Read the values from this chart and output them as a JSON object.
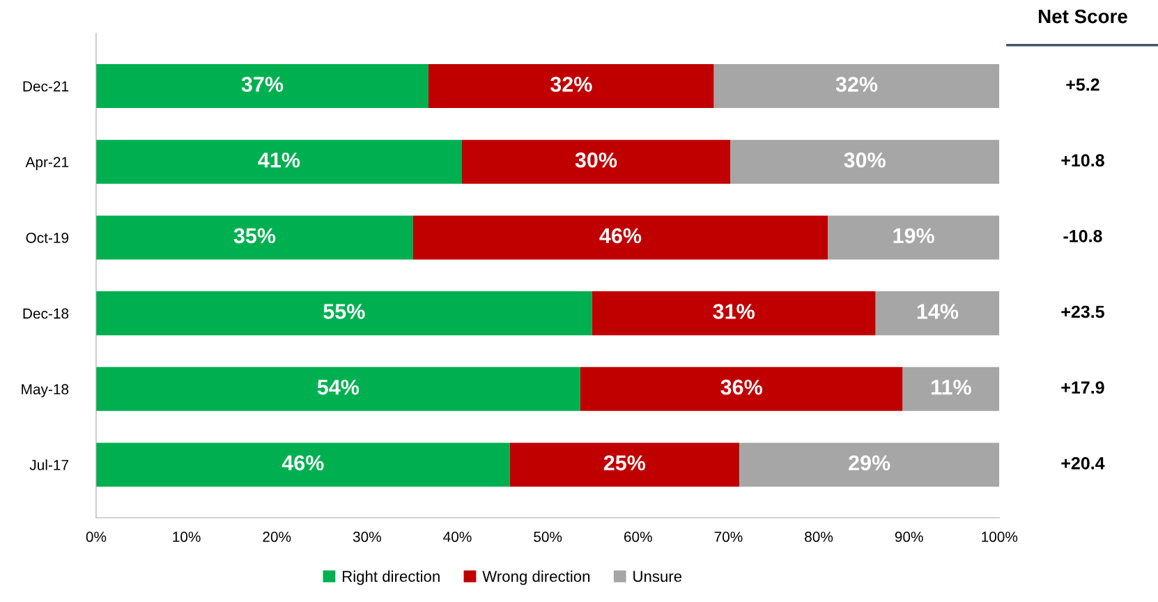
{
  "chart_data": {
    "type": "bar",
    "orientation": "horizontal",
    "stacked": true,
    "categories": [
      "Dec-21",
      "Apr-21",
      "Oct-19",
      "Dec-18",
      "May-18",
      "Jul-17"
    ],
    "series": [
      {
        "name": "Right direction",
        "color": "#00b050",
        "values": [
          36.8,
          40.5,
          35.1,
          54.9,
          53.6,
          45.8
        ],
        "value_labels": [
          "37%",
          "41%",
          "35%",
          "55%",
          "54%",
          "46%"
        ]
      },
      {
        "name": "Wrong direction",
        "color": "#c00000",
        "values": [
          31.6,
          29.7,
          45.9,
          31.4,
          35.7,
          25.4
        ],
        "value_labels": [
          "32%",
          "30%",
          "46%",
          "31%",
          "36%",
          "25%"
        ]
      },
      {
        "name": "Unsure",
        "color": "#a6a6a6",
        "values": [
          31.6,
          29.8,
          19.0,
          13.7,
          10.7,
          28.8
        ],
        "value_labels": [
          "32%",
          "30%",
          "19%",
          "14%",
          "11%",
          "29%"
        ]
      }
    ],
    "xlim": [
      0,
      100
    ],
    "xticks": [
      {
        "value": 0,
        "label": "0%"
      },
      {
        "value": 10,
        "label": "10%"
      },
      {
        "value": 20,
        "label": "20%"
      },
      {
        "value": 30,
        "label": "30%"
      },
      {
        "value": 40,
        "label": "40%"
      },
      {
        "value": 50,
        "label": "50%"
      },
      {
        "value": 60,
        "label": "60%"
      },
      {
        "value": 70,
        "label": "70%"
      },
      {
        "value": 80,
        "label": "80%"
      },
      {
        "value": 90,
        "label": "90%"
      },
      {
        "value": 100,
        "label": "100%"
      }
    ],
    "annotations": [
      "Net Score",
      "+5.2",
      "+10.8",
      "-10.8",
      "+23.5",
      "+17.9",
      "+20.4"
    ],
    "legend": "bottom",
    "grid": false
  }
}
